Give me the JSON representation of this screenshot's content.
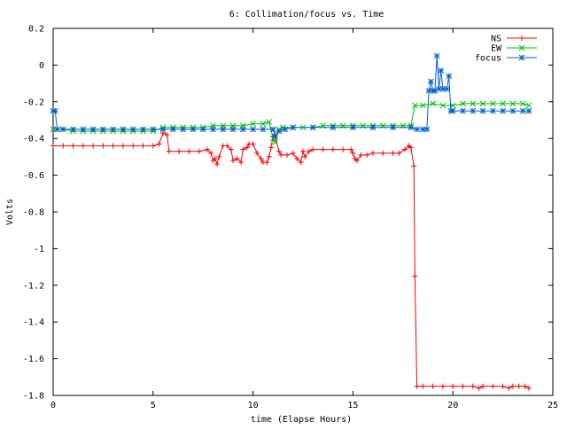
{
  "chart_data": {
    "type": "line",
    "title": "6: Collimation/focus vs. Time",
    "xlabel": "time (Elapse Hours)",
    "ylabel": "Volts",
    "xlim": [
      0,
      25
    ],
    "ylim": [
      -1.8,
      0.2
    ],
    "x_ticks": [
      0,
      5,
      10,
      15,
      20,
      25
    ],
    "x_tick_labels": [
      "0",
      "5",
      "10",
      "15",
      "20",
      "25"
    ],
    "y_ticks": [
      0.2,
      0,
      -0.2,
      -0.4,
      -0.6,
      -0.8,
      -1,
      -1.2,
      -1.4,
      -1.6,
      -1.8
    ],
    "y_tick_labels": [
      "0.2",
      "0",
      "-0.2",
      "-0.4",
      "-0.6",
      "-0.8",
      "-1",
      "-1.2",
      "-1.4",
      "-1.6",
      "-1.8"
    ],
    "grid": false,
    "legend_position": "top-right",
    "series": [
      {
        "name": "NS",
        "color": "#ff0000",
        "marker": "+",
        "points": [
          [
            0.0,
            -0.44
          ],
          [
            0.5,
            -0.44
          ],
          [
            1.0,
            -0.44
          ],
          [
            1.5,
            -0.44
          ],
          [
            2.0,
            -0.44
          ],
          [
            2.5,
            -0.44
          ],
          [
            3.0,
            -0.44
          ],
          [
            3.5,
            -0.44
          ],
          [
            4.0,
            -0.44
          ],
          [
            4.5,
            -0.44
          ],
          [
            5.0,
            -0.44
          ],
          [
            5.3,
            -0.43
          ],
          [
            5.5,
            -0.37
          ],
          [
            5.7,
            -0.38
          ],
          [
            5.8,
            -0.47
          ],
          [
            6.3,
            -0.47
          ],
          [
            6.8,
            -0.47
          ],
          [
            7.3,
            -0.47
          ],
          [
            7.7,
            -0.46
          ],
          [
            7.9,
            -0.48
          ],
          [
            8.0,
            -0.52
          ],
          [
            8.1,
            -0.51
          ],
          [
            8.2,
            -0.54
          ],
          [
            8.3,
            -0.5
          ],
          [
            8.5,
            -0.44
          ],
          [
            8.7,
            -0.44
          ],
          [
            8.9,
            -0.46
          ],
          [
            9.0,
            -0.52
          ],
          [
            9.2,
            -0.51
          ],
          [
            9.4,
            -0.53
          ],
          [
            9.5,
            -0.46
          ],
          [
            9.7,
            -0.45
          ],
          [
            9.8,
            -0.43
          ],
          [
            10.0,
            -0.43
          ],
          [
            10.2,
            -0.48
          ],
          [
            10.4,
            -0.51
          ],
          [
            10.5,
            -0.53
          ],
          [
            10.7,
            -0.53
          ],
          [
            10.8,
            -0.5
          ],
          [
            10.9,
            -0.45
          ],
          [
            11.0,
            -0.39
          ],
          [
            11.1,
            -0.38
          ],
          [
            11.3,
            -0.47
          ],
          [
            11.4,
            -0.49
          ],
          [
            11.7,
            -0.49
          ],
          [
            12.0,
            -0.48
          ],
          [
            12.2,
            -0.51
          ],
          [
            12.4,
            -0.53
          ],
          [
            12.5,
            -0.47
          ],
          [
            12.6,
            -0.5
          ],
          [
            12.8,
            -0.47
          ],
          [
            13.0,
            -0.46
          ],
          [
            13.5,
            -0.46
          ],
          [
            14.0,
            -0.46
          ],
          [
            14.5,
            -0.46
          ],
          [
            14.9,
            -0.46
          ],
          [
            15.0,
            -0.48
          ],
          [
            15.1,
            -0.51
          ],
          [
            15.2,
            -0.52
          ],
          [
            15.4,
            -0.49
          ],
          [
            15.7,
            -0.49
          ],
          [
            16.0,
            -0.48
          ],
          [
            16.5,
            -0.48
          ],
          [
            17.0,
            -0.48
          ],
          [
            17.3,
            -0.48
          ],
          [
            17.6,
            -0.46
          ],
          [
            17.8,
            -0.44
          ],
          [
            17.9,
            -0.45
          ],
          [
            18.05,
            -0.55
          ],
          [
            18.1,
            -1.15
          ],
          [
            18.2,
            -1.75
          ],
          [
            18.5,
            -1.75
          ],
          [
            19.0,
            -1.75
          ],
          [
            19.5,
            -1.75
          ],
          [
            20.0,
            -1.75
          ],
          [
            20.5,
            -1.75
          ],
          [
            21.0,
            -1.75
          ],
          [
            21.3,
            -1.76
          ],
          [
            21.5,
            -1.75
          ],
          [
            22.0,
            -1.75
          ],
          [
            22.5,
            -1.75
          ],
          [
            22.8,
            -1.76
          ],
          [
            23.0,
            -1.75
          ],
          [
            23.3,
            -1.75
          ],
          [
            23.6,
            -1.75
          ],
          [
            23.8,
            -1.76
          ]
        ]
      },
      {
        "name": "EW",
        "color": "#00c000",
        "marker": "x",
        "points": [
          [
            0.0,
            -0.35
          ],
          [
            0.5,
            -0.35
          ],
          [
            1.0,
            -0.36
          ],
          [
            1.5,
            -0.36
          ],
          [
            2.0,
            -0.36
          ],
          [
            2.5,
            -0.36
          ],
          [
            3.0,
            -0.36
          ],
          [
            3.5,
            -0.36
          ],
          [
            4.0,
            -0.36
          ],
          [
            4.5,
            -0.36
          ],
          [
            5.0,
            -0.36
          ],
          [
            5.5,
            -0.34
          ],
          [
            6.0,
            -0.34
          ],
          [
            6.5,
            -0.34
          ],
          [
            7.0,
            -0.34
          ],
          [
            7.5,
            -0.34
          ],
          [
            8.0,
            -0.33
          ],
          [
            8.5,
            -0.33
          ],
          [
            9.0,
            -0.33
          ],
          [
            9.5,
            -0.33
          ],
          [
            10.0,
            -0.32
          ],
          [
            10.5,
            -0.32
          ],
          [
            10.8,
            -0.31
          ],
          [
            11.0,
            -0.4
          ],
          [
            11.1,
            -0.42
          ],
          [
            11.3,
            -0.35
          ],
          [
            11.5,
            -0.34
          ],
          [
            12.0,
            -0.34
          ],
          [
            12.5,
            -0.34
          ],
          [
            13.0,
            -0.34
          ],
          [
            13.5,
            -0.33
          ],
          [
            14.0,
            -0.33
          ],
          [
            14.5,
            -0.33
          ],
          [
            15.0,
            -0.33
          ],
          [
            15.5,
            -0.33
          ],
          [
            16.0,
            -0.33
          ],
          [
            16.5,
            -0.33
          ],
          [
            17.0,
            -0.33
          ],
          [
            17.5,
            -0.33
          ],
          [
            17.9,
            -0.33
          ],
          [
            18.1,
            -0.22
          ],
          [
            18.5,
            -0.22
          ],
          [
            19.0,
            -0.21
          ],
          [
            19.5,
            -0.22
          ],
          [
            20.0,
            -0.22
          ],
          [
            20.5,
            -0.21
          ],
          [
            21.0,
            -0.21
          ],
          [
            21.5,
            -0.21
          ],
          [
            22.0,
            -0.21
          ],
          [
            22.5,
            -0.21
          ],
          [
            23.0,
            -0.21
          ],
          [
            23.5,
            -0.21
          ],
          [
            23.8,
            -0.22
          ]
        ]
      },
      {
        "name": "focus",
        "color": "#0060d0",
        "marker": "*",
        "points": [
          [
            0.0,
            -0.25
          ],
          [
            0.1,
            -0.25
          ],
          [
            0.2,
            -0.35
          ],
          [
            0.5,
            -0.35
          ],
          [
            1.0,
            -0.35
          ],
          [
            1.5,
            -0.35
          ],
          [
            2.0,
            -0.35
          ],
          [
            2.5,
            -0.35
          ],
          [
            3.0,
            -0.35
          ],
          [
            3.5,
            -0.35
          ],
          [
            4.0,
            -0.35
          ],
          [
            4.5,
            -0.35
          ],
          [
            5.0,
            -0.35
          ],
          [
            5.5,
            -0.35
          ],
          [
            6.0,
            -0.35
          ],
          [
            6.5,
            -0.35
          ],
          [
            7.0,
            -0.35
          ],
          [
            7.5,
            -0.35
          ],
          [
            8.0,
            -0.35
          ],
          [
            8.5,
            -0.35
          ],
          [
            9.0,
            -0.35
          ],
          [
            9.5,
            -0.35
          ],
          [
            10.0,
            -0.35
          ],
          [
            10.5,
            -0.35
          ],
          [
            11.0,
            -0.35
          ],
          [
            11.1,
            -0.39
          ],
          [
            11.3,
            -0.36
          ],
          [
            11.6,
            -0.35
          ],
          [
            12.0,
            -0.34
          ],
          [
            13.0,
            -0.34
          ],
          [
            14.0,
            -0.34
          ],
          [
            15.0,
            -0.34
          ],
          [
            16.0,
            -0.34
          ],
          [
            17.0,
            -0.34
          ],
          [
            17.9,
            -0.34
          ],
          [
            18.2,
            -0.35
          ],
          [
            18.5,
            -0.35
          ],
          [
            18.7,
            -0.35
          ],
          [
            18.8,
            -0.14
          ],
          [
            18.9,
            -0.09
          ],
          [
            19.0,
            -0.14
          ],
          [
            19.1,
            -0.14
          ],
          [
            19.2,
            0.05
          ],
          [
            19.3,
            -0.13
          ],
          [
            19.4,
            -0.03
          ],
          [
            19.5,
            -0.13
          ],
          [
            19.7,
            -0.13
          ],
          [
            19.8,
            -0.06
          ],
          [
            19.9,
            -0.25
          ],
          [
            20.0,
            -0.25
          ],
          [
            20.5,
            -0.25
          ],
          [
            21.0,
            -0.25
          ],
          [
            21.5,
            -0.25
          ],
          [
            22.0,
            -0.25
          ],
          [
            22.5,
            -0.25
          ],
          [
            23.0,
            -0.25
          ],
          [
            23.5,
            -0.25
          ],
          [
            23.8,
            -0.25
          ]
        ]
      }
    ]
  }
}
